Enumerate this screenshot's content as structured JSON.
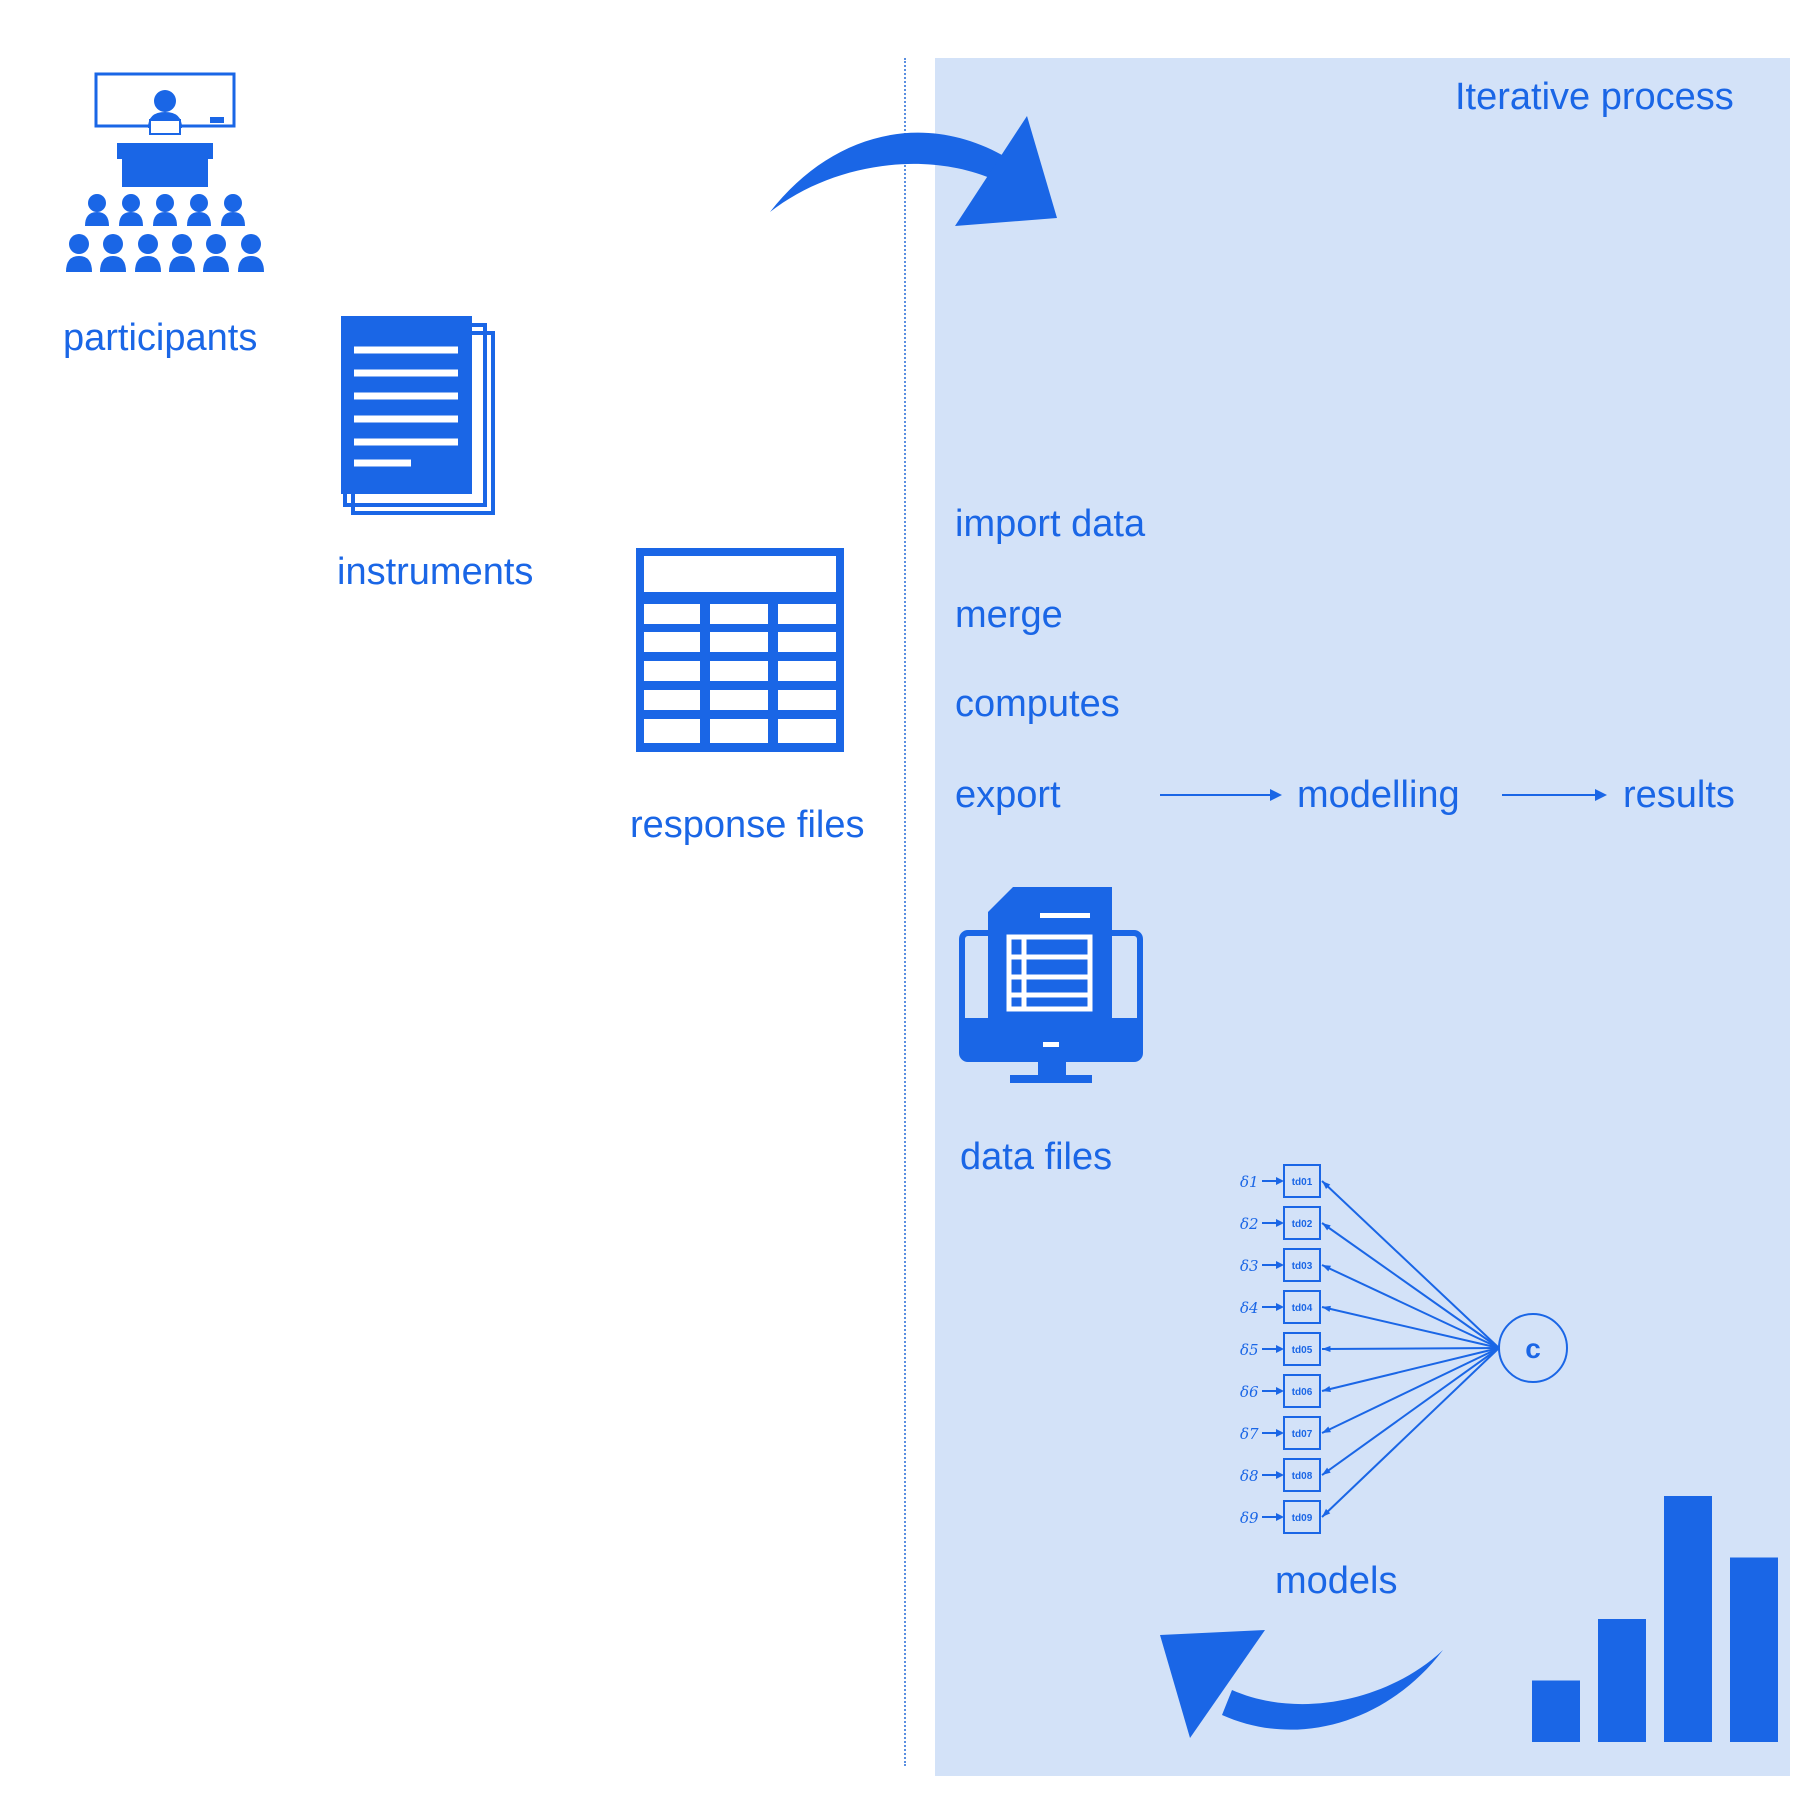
{
  "colors": {
    "accent": "#1a66e6",
    "panel": "#d3e2f8",
    "divider": "#5a8fe0"
  },
  "panel": {
    "title": "Iterative process"
  },
  "left": {
    "participants_label": "participants",
    "instruments_label": "instruments",
    "response_files_label": "response files",
    "participants_icon": "classroom-icon",
    "instruments_icon": "documents-stack-icon",
    "response_files_icon": "spreadsheet-table-icon"
  },
  "steps": {
    "import": "import data",
    "merge": "merge",
    "computes": "computes",
    "export": "export",
    "modelling": "modelling",
    "results": "results"
  },
  "data_files": {
    "label": "data files",
    "icon": "monitor-spreadsheet-icon"
  },
  "model": {
    "label": "models",
    "factor": "c",
    "indicators": [
      "td01",
      "td02",
      "td03",
      "td04",
      "td05",
      "td06",
      "td07",
      "td08",
      "td09"
    ],
    "errors": [
      "δ1",
      "δ2",
      "δ3",
      "δ4",
      "δ5",
      "δ6",
      "δ7",
      "δ8",
      "δ9"
    ]
  },
  "results_chart": {
    "icon": "bar-chart-icon",
    "values": [
      1,
      2,
      4,
      3
    ]
  }
}
